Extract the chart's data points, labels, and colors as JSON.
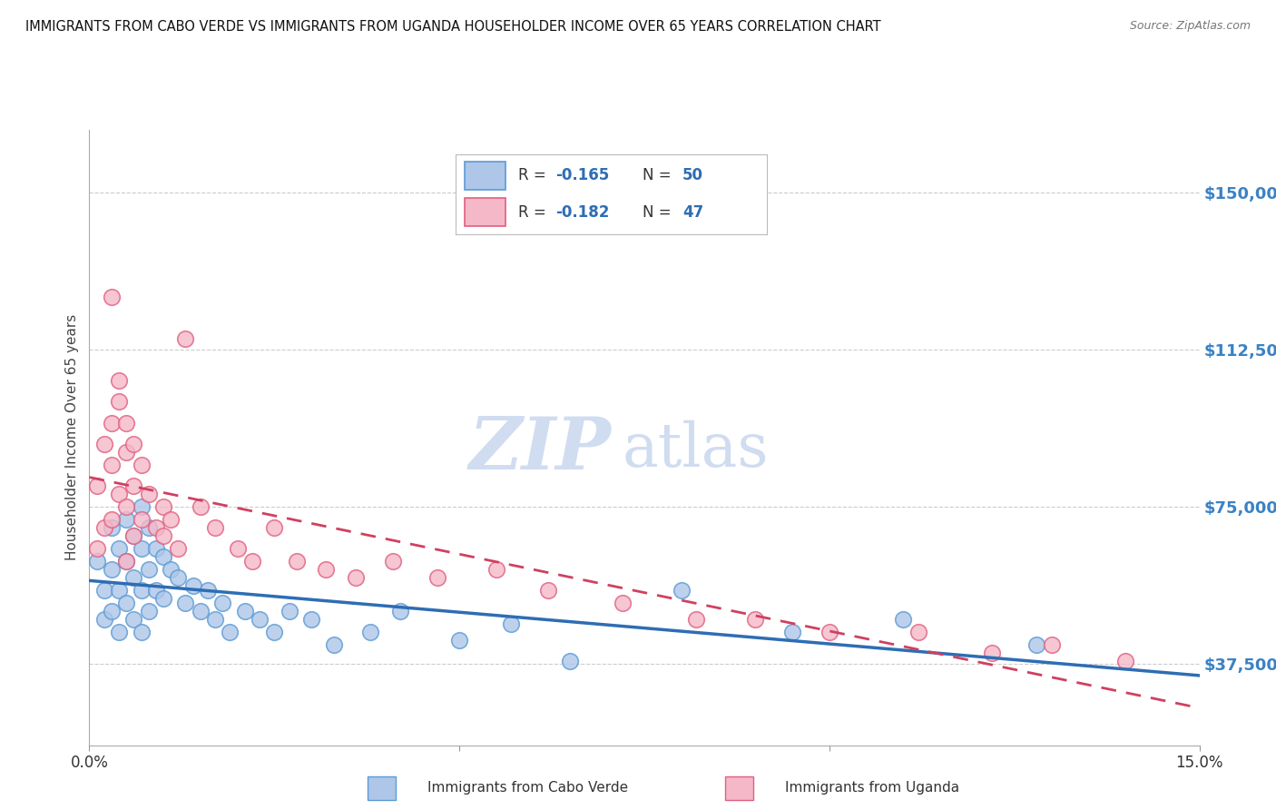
{
  "title": "IMMIGRANTS FROM CABO VERDE VS IMMIGRANTS FROM UGANDA HOUSEHOLDER INCOME OVER 65 YEARS CORRELATION CHART",
  "source": "Source: ZipAtlas.com",
  "ylabel": "Householder Income Over 65 years",
  "xlim": [
    0.0,
    0.15
  ],
  "ylim": [
    18000,
    165000
  ],
  "yticks": [
    37500,
    75000,
    112500,
    150000
  ],
  "xticks": [
    0.0,
    0.05,
    0.1,
    0.15
  ],
  "xtick_labels": [
    "0.0%",
    "",
    "",
    "15.0%"
  ],
  "ytick_labels": [
    "$37,500",
    "$75,000",
    "$112,500",
    "$150,000"
  ],
  "cabo_verde_fill": "#AEC6E8",
  "cabo_verde_edge": "#5B9BD5",
  "uganda_fill": "#F4B8C8",
  "uganda_edge": "#E06080",
  "cabo_verde_line_color": "#2E6DB4",
  "uganda_line_color": "#D04060",
  "cabo_verde_R": -0.165,
  "cabo_verde_N": 50,
  "uganda_R": -0.182,
  "uganda_N": 47,
  "legend_cabo_fill": "#AEC6E8",
  "legend_cabo_edge": "#5B9BD5",
  "legend_uganda_fill": "#F4B8C8",
  "legend_uganda_edge": "#E06080",
  "watermark_color": "#D0DCF0",
  "cabo_verde_x": [
    0.001,
    0.002,
    0.002,
    0.003,
    0.003,
    0.003,
    0.004,
    0.004,
    0.004,
    0.005,
    0.005,
    0.005,
    0.006,
    0.006,
    0.006,
    0.007,
    0.007,
    0.007,
    0.007,
    0.008,
    0.008,
    0.008,
    0.009,
    0.009,
    0.01,
    0.01,
    0.011,
    0.012,
    0.013,
    0.014,
    0.015,
    0.016,
    0.017,
    0.018,
    0.019,
    0.021,
    0.023,
    0.025,
    0.027,
    0.03,
    0.033,
    0.038,
    0.042,
    0.05,
    0.057,
    0.065,
    0.08,
    0.095,
    0.11,
    0.128
  ],
  "cabo_verde_y": [
    62000,
    55000,
    48000,
    70000,
    60000,
    50000,
    65000,
    55000,
    45000,
    72000,
    62000,
    52000,
    68000,
    58000,
    48000,
    75000,
    65000,
    55000,
    45000,
    70000,
    60000,
    50000,
    65000,
    55000,
    63000,
    53000,
    60000,
    58000,
    52000,
    56000,
    50000,
    55000,
    48000,
    52000,
    45000,
    50000,
    48000,
    45000,
    50000,
    48000,
    42000,
    45000,
    50000,
    43000,
    47000,
    38000,
    55000,
    45000,
    48000,
    42000
  ],
  "uganda_x": [
    0.001,
    0.001,
    0.002,
    0.002,
    0.003,
    0.003,
    0.003,
    0.004,
    0.004,
    0.005,
    0.005,
    0.005,
    0.006,
    0.006,
    0.007,
    0.007,
    0.008,
    0.009,
    0.01,
    0.01,
    0.011,
    0.012,
    0.013,
    0.015,
    0.017,
    0.02,
    0.022,
    0.025,
    0.028,
    0.032,
    0.036,
    0.041,
    0.047,
    0.055,
    0.062,
    0.072,
    0.082,
    0.09,
    0.1,
    0.112,
    0.122,
    0.13,
    0.14,
    0.003,
    0.004,
    0.005,
    0.006
  ],
  "uganda_y": [
    65000,
    80000,
    70000,
    90000,
    95000,
    85000,
    72000,
    100000,
    78000,
    88000,
    75000,
    62000,
    80000,
    68000,
    85000,
    72000,
    78000,
    70000,
    68000,
    75000,
    72000,
    65000,
    115000,
    75000,
    70000,
    65000,
    62000,
    70000,
    62000,
    60000,
    58000,
    62000,
    58000,
    60000,
    55000,
    52000,
    48000,
    48000,
    45000,
    45000,
    40000,
    42000,
    38000,
    125000,
    105000,
    95000,
    90000
  ],
  "background_color": "#FFFFFF",
  "grid_color": "#CCCCCC"
}
